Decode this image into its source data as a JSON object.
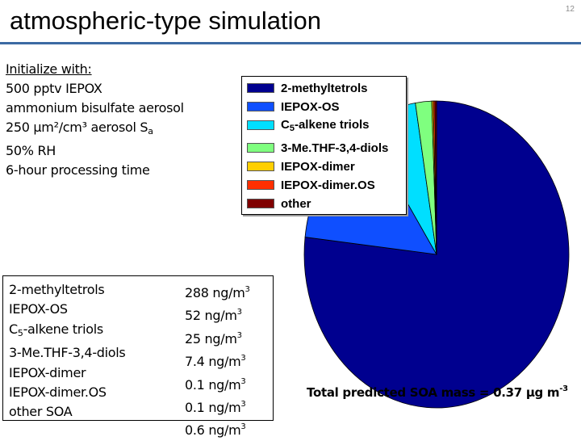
{
  "slide": {
    "title": "atmospheric-type simulation",
    "page_number": "12",
    "accent_color": "#3b6aa3"
  },
  "conditions": {
    "heading": "Initialize with:",
    "lines": [
      "500 pptv IEPOX",
      "ammonium bisulfate aerosol",
      "250 µm²/cm³ aerosol S",
      "50% RH",
      "6-hour processing time"
    ],
    "surface_area_subscript": "a"
  },
  "table": {
    "rows": [
      {
        "name": "2-methyltetrols",
        "value": "288 ng/m",
        "unit_exp": "3"
      },
      {
        "name": "IEPOX-OS",
        "value": "52 ng/m",
        "unit_exp": "3"
      },
      {
        "name_pre": "C",
        "name_sub": "5",
        "name_post": "-alkene triols",
        "value": "25 ng/m",
        "unit_exp": "3"
      },
      {
        "name": "3-Me.THF-3,4-diols",
        "value": "7.4 ng/m",
        "unit_exp": "3"
      },
      {
        "name": "IEPOX-dimer",
        "value": "0.1 ng/m",
        "unit_exp": "3"
      },
      {
        "name": "IEPOX-dimer.OS",
        "value": "0.1 ng/m",
        "unit_exp": "3"
      },
      {
        "name": "other SOA",
        "value": "0.6 ng/m",
        "unit_exp": "3"
      }
    ]
  },
  "legend": {
    "items": [
      {
        "label": "2-methyltetrols",
        "color": "#00008f"
      },
      {
        "label": "IEPOX-OS",
        "color": "#0f4fff"
      },
      {
        "label_pre": "C",
        "label_sub": "5",
        "label_post": "-alkene triols",
        "color": "#00dfff"
      },
      {
        "label": "3-Me.THF-3,4-diols",
        "color": "#7fff7f"
      },
      {
        "label": "IEPOX-dimer",
        "color": "#ffcf00"
      },
      {
        "label": "IEPOX-dimer.OS",
        "color": "#ff2f00"
      },
      {
        "label": "other",
        "color": "#800000"
      }
    ]
  },
  "total": {
    "text": "Total predicted SOA mass = 0.37 µg m",
    "exp": "-3"
  },
  "chart_data": {
    "type": "pie",
    "categories": [
      "2-methyltetrols",
      "IEPOX-OS",
      "C5-alkene triols",
      "3-Me.THF-3,4-diols",
      "IEPOX-dimer",
      "IEPOX-dimer.OS",
      "other"
    ],
    "values": [
      288,
      52,
      25,
      7.4,
      0.1,
      0.1,
      0.6
    ],
    "units": "ng/m3",
    "colors": [
      "#00008f",
      "#0f4fff",
      "#00dfff",
      "#7fff7f",
      "#ffcf00",
      "#ff2f00",
      "#800000"
    ],
    "start_angle_deg": 90,
    "direction": "clockwise",
    "legend_position": "left"
  }
}
